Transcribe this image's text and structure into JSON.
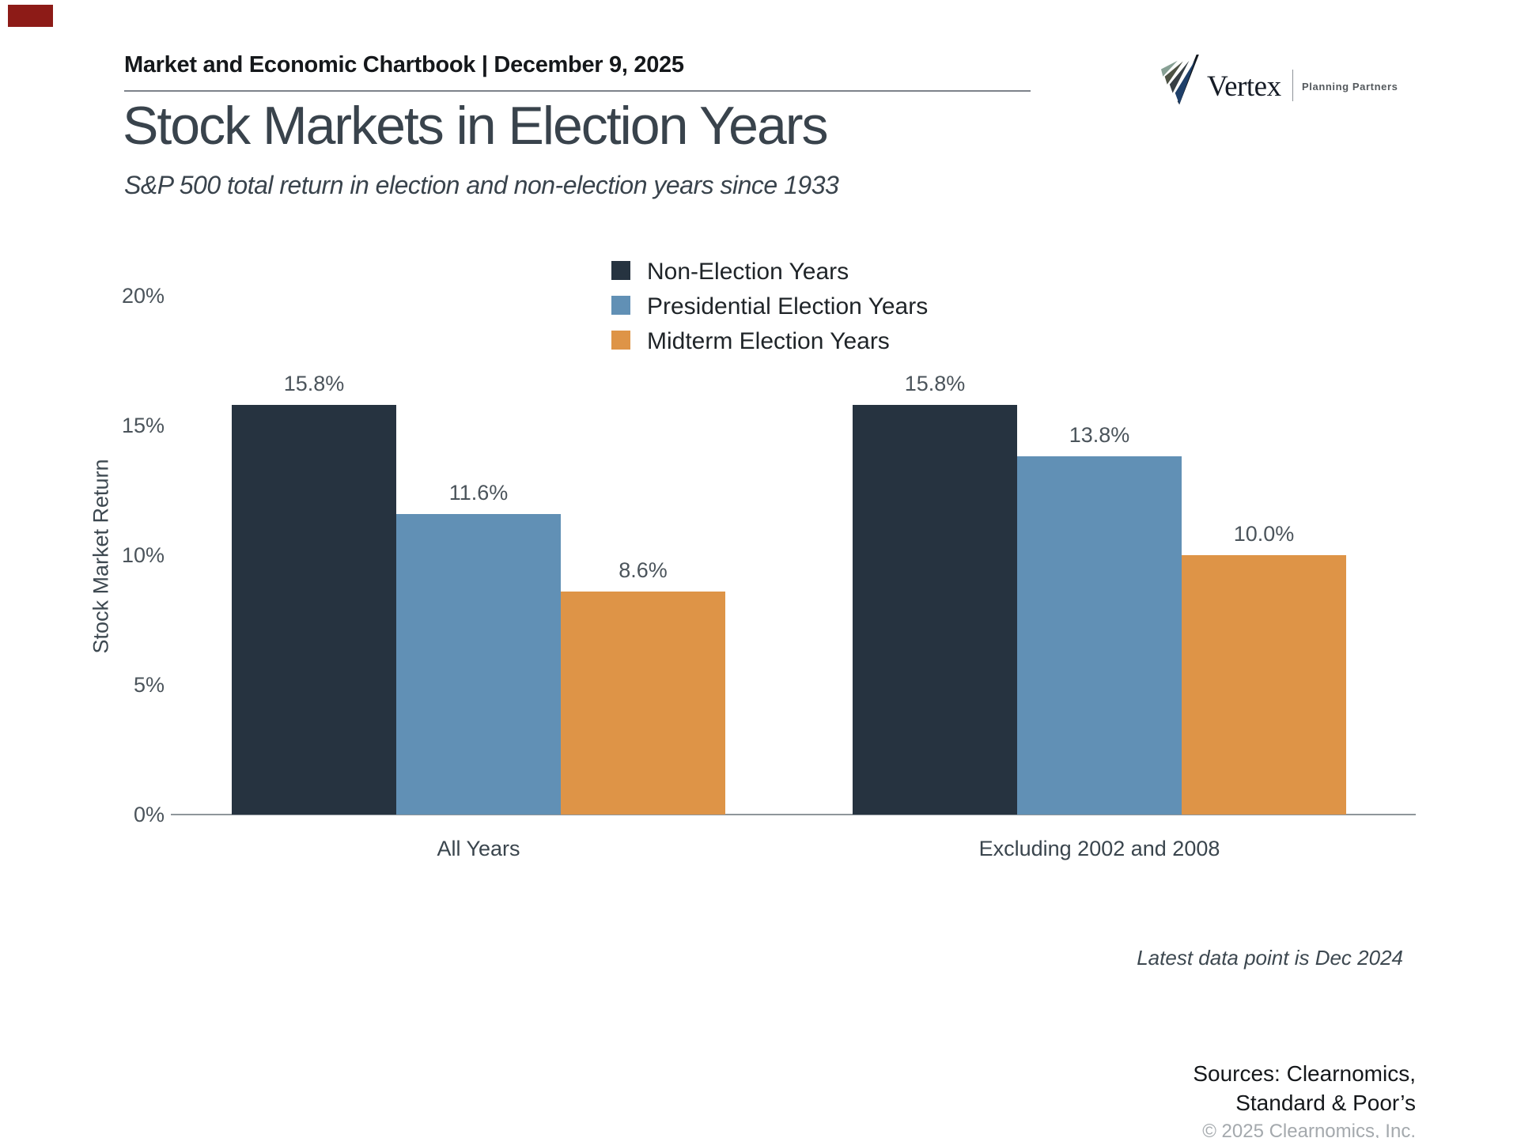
{
  "corner_marker": {
    "color": "#8d1b17"
  },
  "header": {
    "text": "Market and Economic Chartbook | December 9, 2025"
  },
  "logo": {
    "name": "Vertex",
    "tagline": "Planning Partners",
    "mark_colors": {
      "sage": "#87a094",
      "olive": "#4d5244",
      "charcoal": "#363e44",
      "navy": "#1e3f69",
      "line": "#10161d"
    }
  },
  "title": "Stock Markets in Election Years",
  "subtitle": "S&P 500 total return in election and non-election years since 1933",
  "chart_data": {
    "type": "bar",
    "title": "Stock Markets in Election Years",
    "xlabel": "",
    "ylabel": "Stock Market Return",
    "categories": [
      "All Years",
      "Excluding 2002 and 2008"
    ],
    "series": [
      {
        "name": "Non-Election Years",
        "color": "#263340",
        "values": [
          15.8,
          15.8
        ],
        "labels": [
          "15.8%",
          "15.8%"
        ]
      },
      {
        "name": "Presidential Election Years",
        "color": "#6190b5",
        "values": [
          11.6,
          13.8
        ],
        "labels": [
          "11.6%",
          "13.8%"
        ]
      },
      {
        "name": "Midterm Election Years",
        "color": "#de9447",
        "values": [
          8.6,
          10.0
        ],
        "labels": [
          "8.6%",
          "10.0%"
        ]
      }
    ],
    "ylim": [
      0,
      20
    ],
    "yticks": [
      {
        "value": 0,
        "label": "0%"
      },
      {
        "value": 5,
        "label": "5%"
      },
      {
        "value": 10,
        "label": "10%"
      },
      {
        "value": 15,
        "label": "15%"
      },
      {
        "value": 20,
        "label": "20%"
      }
    ],
    "grid": false,
    "legend_position": "top-center"
  },
  "footnote": "Latest data point is Dec 2024",
  "sources": {
    "line1": "Sources: Clearnomics,",
    "line2": "Standard & Poor’s",
    "copyright": "© 2025 Clearnomics, Inc."
  }
}
